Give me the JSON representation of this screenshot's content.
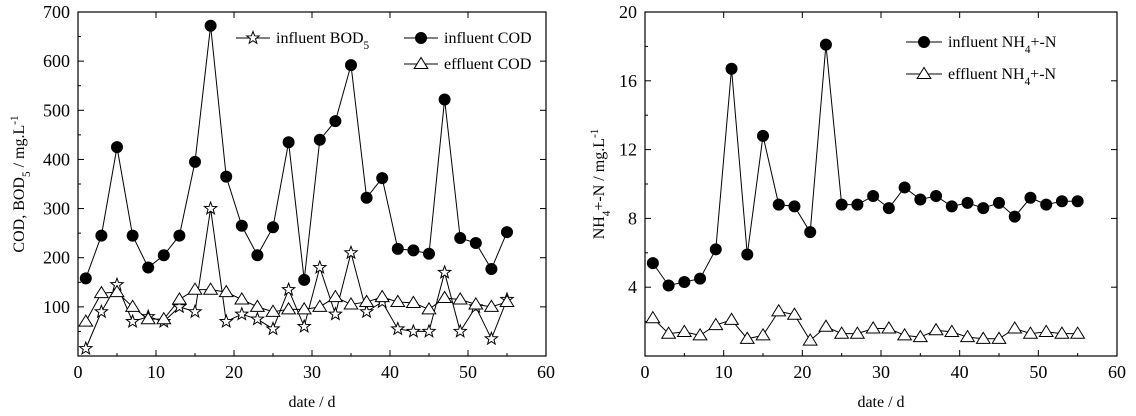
{
  "chart_data": [
    {
      "type": "line",
      "xlabel": "date / d",
      "ylabel": "COD, BOD5 / mg.L-1",
      "ylabel_parts": [
        {
          "text": "COD, BOD",
          "style": "normal"
        },
        {
          "text": "5",
          "style": "sub"
        },
        {
          "text": " / mg.L",
          "style": "normal"
        },
        {
          "text": "-1",
          "style": "sup"
        }
      ],
      "xlim": [
        0,
        60
      ],
      "ylim": [
        0,
        700
      ],
      "xticks": [
        0,
        10,
        20,
        30,
        40,
        50,
        60
      ],
      "yticks": [
        100,
        200,
        300,
        400,
        500,
        600,
        700
      ],
      "legend_position": "top-right",
      "series": [
        {
          "name": "influent BOD5",
          "name_parts": [
            {
              "text": "influent BOD",
              "style": "normal"
            },
            {
              "text": "5",
              "style": "sub"
            }
          ],
          "marker": "star",
          "x": [
            1,
            3,
            5,
            7,
            9,
            11,
            13,
            15,
            17,
            19,
            21,
            23,
            25,
            27,
            29,
            31,
            33,
            35,
            37,
            39,
            41,
            43,
            45,
            47,
            49,
            51,
            53,
            55
          ],
          "y": [
            15,
            90,
            145,
            70,
            80,
            70,
            100,
            90,
            300,
            70,
            85,
            75,
            55,
            135,
            60,
            180,
            85,
            210,
            90,
            110,
            55,
            50,
            50,
            170,
            50,
            100,
            35,
            115
          ]
        },
        {
          "name": "influent COD",
          "name_parts": [
            {
              "text": "influent COD",
              "style": "normal"
            }
          ],
          "marker": "filled-circle",
          "x": [
            1,
            3,
            5,
            7,
            9,
            11,
            13,
            15,
            17,
            19,
            21,
            23,
            25,
            27,
            29,
            31,
            33,
            35,
            37,
            39,
            41,
            43,
            45,
            47,
            49,
            51,
            53,
            55
          ],
          "y": [
            158,
            245,
            425,
            245,
            180,
            205,
            245,
            395,
            672,
            365,
            265,
            205,
            262,
            435,
            155,
            440,
            478,
            592,
            322,
            362,
            218,
            215,
            208,
            522,
            240,
            230,
            177,
            252
          ]
        },
        {
          "name": "effluent COD",
          "name_parts": [
            {
              "text": "effluent COD",
              "style": "normal"
            }
          ],
          "marker": "open-triangle",
          "x": [
            1,
            3,
            5,
            7,
            9,
            11,
            13,
            15,
            17,
            19,
            21,
            23,
            25,
            27,
            29,
            31,
            33,
            35,
            37,
            39,
            41,
            43,
            45,
            47,
            49,
            51,
            53,
            55
          ],
          "y": [
            70,
            128,
            130,
            100,
            75,
            75,
            115,
            135,
            135,
            130,
            115,
            100,
            90,
            95,
            95,
            100,
            120,
            105,
            110,
            120,
            110,
            108,
            95,
            118,
            115,
            105,
            100,
            110
          ]
        }
      ]
    },
    {
      "type": "line",
      "xlabel": "date / d",
      "ylabel": "NH4+-N / mg.L-1",
      "ylabel_parts": [
        {
          "text": "NH",
          "style": "normal"
        },
        {
          "text": "4",
          "style": "sub"
        },
        {
          "text": "+-N / mg.L",
          "style": "normal"
        },
        {
          "text": "-1",
          "style": "sup"
        }
      ],
      "xlim": [
        0,
        60
      ],
      "ylim": [
        0,
        20
      ],
      "xticks": [
        0,
        10,
        20,
        30,
        40,
        50,
        60
      ],
      "yticks": [
        4,
        8,
        12,
        16,
        20
      ],
      "legend_position": "top-right",
      "series": [
        {
          "name": "influent NH4+-N",
          "name_parts": [
            {
              "text": "influent  NH",
              "style": "normal"
            },
            {
              "text": "4",
              "style": "sub"
            },
            {
              "text": "+-N",
              "style": "normal"
            }
          ],
          "marker": "filled-circle",
          "x": [
            1,
            3,
            5,
            7,
            9,
            11,
            13,
            15,
            17,
            19,
            21,
            23,
            25,
            27,
            29,
            31,
            33,
            35,
            37,
            39,
            41,
            43,
            45,
            47,
            49,
            51,
            53,
            55
          ],
          "y": [
            5.4,
            4.1,
            4.3,
            4.5,
            6.2,
            16.7,
            5.9,
            12.8,
            8.8,
            8.7,
            7.2,
            18.1,
            8.8,
            8.8,
            9.3,
            8.6,
            9.8,
            9.1,
            9.3,
            8.7,
            8.9,
            8.6,
            8.9,
            8.1,
            9.2,
            8.8,
            9.0,
            9.0
          ]
        },
        {
          "name": "effluent NH4+-N",
          "name_parts": [
            {
              "text": "effluent NH",
              "style": "normal"
            },
            {
              "text": "4",
              "style": "sub"
            },
            {
              "text": "+-N",
              "style": "normal"
            }
          ],
          "marker": "open-triangle",
          "x": [
            1,
            3,
            5,
            7,
            9,
            11,
            13,
            15,
            17,
            19,
            21,
            23,
            25,
            27,
            29,
            31,
            33,
            35,
            37,
            39,
            41,
            43,
            45,
            47,
            49,
            51,
            53,
            55
          ],
          "y": [
            2.2,
            1.3,
            1.4,
            1.2,
            1.8,
            2.1,
            1.0,
            1.2,
            2.6,
            2.4,
            0.9,
            1.7,
            1.3,
            1.3,
            1.6,
            1.6,
            1.2,
            1.1,
            1.5,
            1.4,
            1.1,
            1.0,
            1.0,
            1.6,
            1.3,
            1.4,
            1.3,
            1.3
          ]
        }
      ]
    }
  ]
}
